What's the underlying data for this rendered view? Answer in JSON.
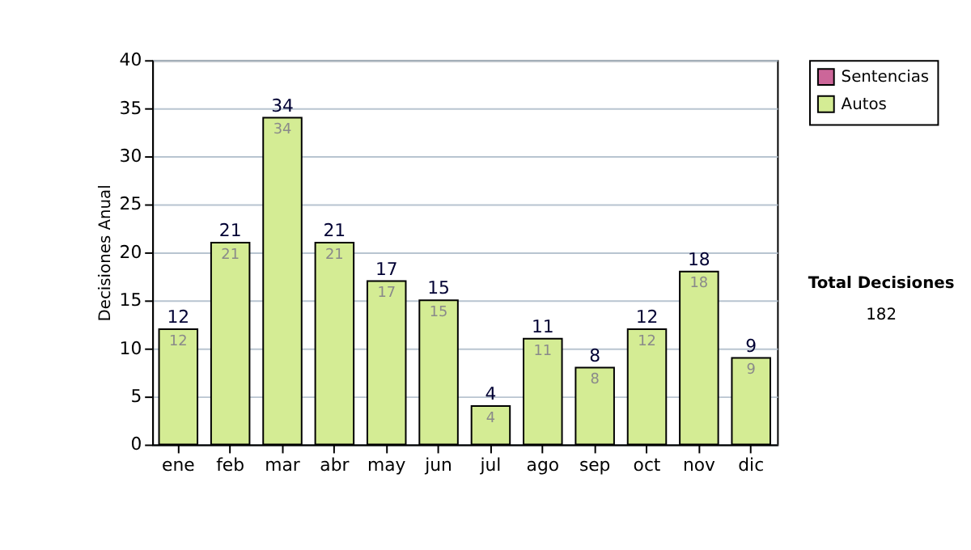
{
  "chart_data": {
    "type": "bar",
    "ylabel": "Decisiones Anual",
    "categories": [
      "ene",
      "feb",
      "mar",
      "abr",
      "may",
      "jun",
      "jul",
      "ago",
      "sep",
      "oct",
      "nov",
      "dic"
    ],
    "series": [
      {
        "name": "Sentencias",
        "color": "#cc6699",
        "values": [
          null,
          null,
          null,
          null,
          null,
          null,
          null,
          null,
          null,
          null,
          null,
          null
        ]
      },
      {
        "name": "Autos",
        "color": "#d4ec94",
        "values": [
          12,
          21,
          34,
          21,
          17,
          15,
          4,
          11,
          8,
          12,
          18,
          9
        ],
        "value_labels": [
          "12",
          "21",
          "34",
          "21",
          "17",
          "15",
          "4",
          "11",
          "8",
          "12",
          "18",
          "9"
        ]
      }
    ],
    "totals": [
      "12",
      "21",
      "34",
      "21",
      "17",
      "15",
      "4",
      "11",
      "8",
      "12",
      "18",
      "9"
    ],
    "ylim": [
      0,
      40
    ],
    "yticks": [
      0,
      5,
      10,
      15,
      20,
      25,
      30,
      35,
      40
    ],
    "grid": "y",
    "legend": "right",
    "annotations": [
      "Total Decisiones",
      "182"
    ]
  }
}
